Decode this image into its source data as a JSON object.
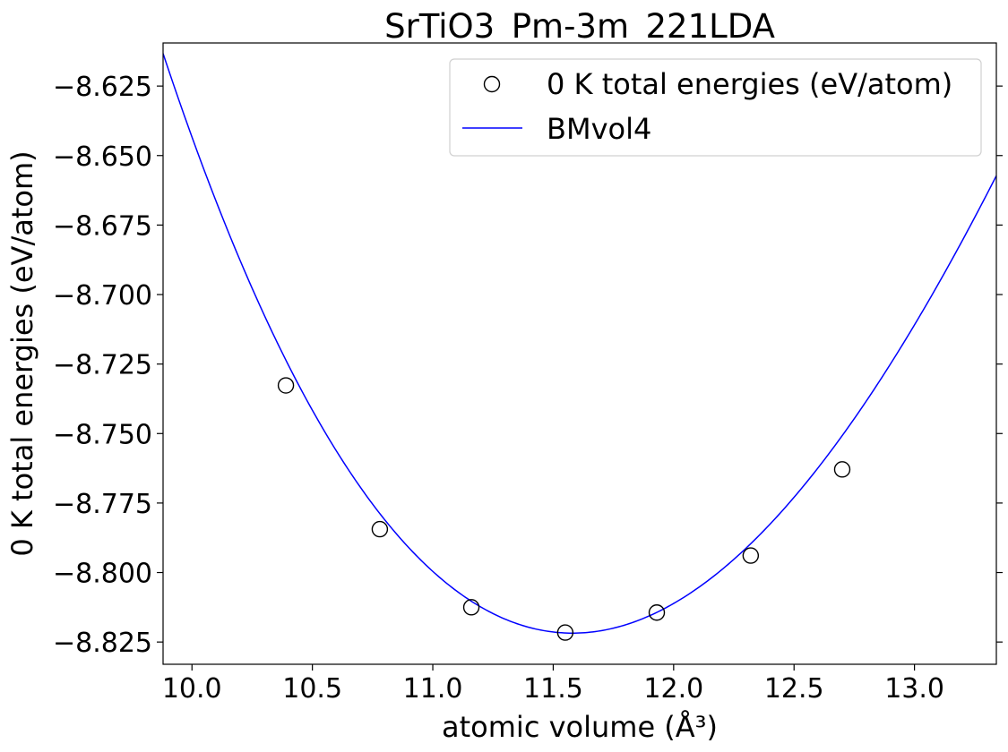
{
  "chart_data": {
    "type": "scatter",
    "title": "SrTiO3_Pm-3m_221LDA",
    "xlabel": "atomic volume (Å³)",
    "ylabel": "0 K total energies (eV/atom)",
    "xlim": [
      9.88,
      13.34
    ],
    "ylim": [
      -8.833,
      -8.6095
    ],
    "xticks": [
      "10.0",
      "10.5",
      "11.0",
      "11.5",
      "12.0",
      "12.5",
      "13.0"
    ],
    "xtick_values": [
      10.0,
      10.5,
      11.0,
      11.5,
      12.0,
      12.5,
      13.0
    ],
    "yticks": [
      "−8.625",
      "−8.650",
      "−8.675",
      "−8.700",
      "−8.725",
      "−8.750",
      "−8.775",
      "−8.800",
      "−8.825"
    ],
    "ytick_values": [
      -8.625,
      -8.65,
      -8.675,
      -8.7,
      -8.725,
      -8.75,
      -8.775,
      -8.8,
      -8.825
    ],
    "grid": false,
    "legend_position": "top-right",
    "series": [
      {
        "name": "0 K total energies (eV/atom)",
        "kind": "markers",
        "marker": "open-circle",
        "color": "#000000",
        "x": [
          10.39,
          10.78,
          11.16,
          11.55,
          11.93,
          12.32,
          12.7
        ],
        "y": [
          -8.7327,
          -8.7844,
          -8.8125,
          -8.8216,
          -8.8144,
          -8.7939,
          -8.7629
        ]
      },
      {
        "name": "BMvol4",
        "kind": "line",
        "color": "#0000ff",
        "fit": {
          "e0": -8.8218,
          "v0": 11.58,
          "a": 0.0628,
          "b": -0.0055
        }
      }
    ]
  }
}
